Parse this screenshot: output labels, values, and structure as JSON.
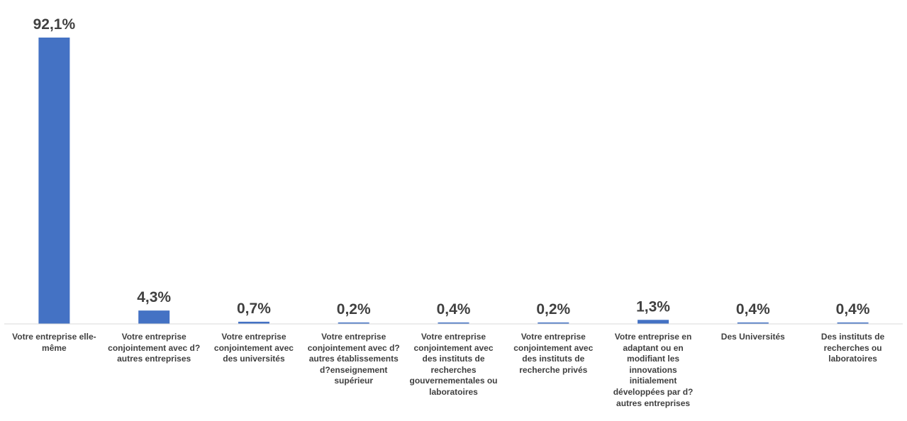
{
  "chart_data": {
    "type": "bar",
    "categories": [
      "Votre entreprise elle-même",
      "Votre entreprise conjointement avec d?autres entreprises",
      "Votre entreprise conjointement avec des universités",
      "Votre entreprise conjointement avec d?autres établissements d?enseignement supérieur",
      "Votre entreprise conjointement avec des instituts de recherches gouvernementales ou laboratoires",
      "Votre entreprise conjointement avec des instituts de recherche privés",
      "Votre entreprise en adaptant ou en modifiant les innovations initialement développées par d?autres entreprises",
      "Des Universités",
      "Des instituts de recherches ou laboratoires"
    ],
    "values": [
      92.1,
      4.3,
      0.7,
      0.2,
      0.4,
      0.2,
      1.3,
      0.4,
      0.4
    ],
    "value_labels": [
      "92,1%",
      "4,3%",
      "0,7%",
      "0,2%",
      "0,4%",
      "0,2%",
      "1,3%",
      "0,4%",
      "0,4%"
    ],
    "title": "",
    "xlabel": "",
    "ylabel": "",
    "ylim": [
      0,
      92.1
    ],
    "grid": false,
    "legend": "none",
    "colors": {
      "bar": "#4472C4",
      "axis": "#D9D9D9",
      "text": "#404040"
    }
  }
}
